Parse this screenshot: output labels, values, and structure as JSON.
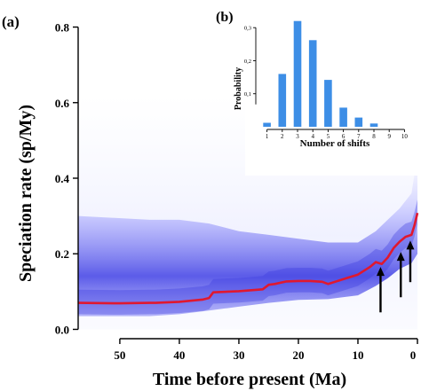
{
  "panel_labels": {
    "main": "(a)",
    "inset": "(b)"
  },
  "colors": {
    "rate_line": "#e0182f",
    "band_core": "#3a3ae0",
    "band_outer": "#b8b8ff",
    "inset_bars": "#3d8ee6",
    "axis": "#000000"
  },
  "chart_data": [
    {
      "type": "line",
      "title": "",
      "xlabel": "Time before present (Ma)",
      "ylabel": "Speciation rate (sp/My)",
      "xlim": [
        57,
        0
      ],
      "ylim": [
        -0.02,
        0.82
      ],
      "x_reversed": true,
      "xticks": [
        50,
        40,
        30,
        20,
        10,
        0
      ],
      "yticks": [
        0.0,
        0.2,
        0.4,
        0.6,
        0.8
      ],
      "xtick_labels": [
        "50",
        "40",
        "30",
        "20",
        "10",
        "0"
      ],
      "ytick_labels": [
        "0.0",
        "0.2",
        "0.4",
        "0.6",
        "0.8"
      ],
      "grid": false,
      "series": [
        {
          "x": [
            57,
            50,
            45,
            44,
            40,
            36,
            35,
            34.3,
            30,
            26,
            25,
            24,
            22,
            20,
            18,
            16,
            15,
            12,
            10,
            8,
            7,
            6,
            5,
            4,
            3,
            2,
            1,
            0.5,
            0
          ],
          "y": [
            0.07,
            0.069,
            0.07,
            0.07,
            0.073,
            0.079,
            0.083,
            0.098,
            0.101,
            0.106,
            0.118,
            0.12,
            0.127,
            0.128,
            0.128,
            0.126,
            0.12,
            0.135,
            0.145,
            0.165,
            0.178,
            0.173,
            0.19,
            0.215,
            0.232,
            0.245,
            0.25,
            0.275,
            0.308
          ]
        }
      ],
      "band": {
        "x": [
          57,
          45,
          40,
          35,
          30,
          25,
          20,
          15,
          10,
          7,
          5,
          3,
          1,
          0
        ],
        "lower": [
          0.035,
          0.035,
          0.04,
          0.05,
          0.06,
          0.07,
          0.078,
          0.08,
          0.09,
          0.115,
          0.135,
          0.16,
          0.175,
          0.2
        ],
        "upper": [
          0.3,
          0.29,
          0.29,
          0.28,
          0.26,
          0.25,
          0.24,
          0.23,
          0.23,
          0.26,
          0.29,
          0.32,
          0.36,
          0.46
        ]
      },
      "annotations": [
        {
          "type": "arrow",
          "x": 6.2,
          "y_tail": 0.045,
          "y_head": 0.165
        },
        {
          "type": "arrow",
          "x": 2.8,
          "y_tail": 0.085,
          "y_head": 0.205
        },
        {
          "type": "arrow",
          "x": 1.2,
          "y_tail": 0.125,
          "y_head": 0.235
        }
      ]
    },
    {
      "type": "bar",
      "title": "",
      "xlabel": "Number of shifts",
      "ylabel": "Probability",
      "categories": [
        "1",
        "2",
        "3",
        "4",
        "5",
        "6",
        "7",
        "8",
        "9",
        "10"
      ],
      "values": [
        0.012,
        0.16,
        0.32,
        0.262,
        0.142,
        0.058,
        0.028,
        0.01,
        0.0,
        0.0
      ],
      "ylim": [
        0,
        0.33
      ],
      "yticks": [
        0.1,
        0.2,
        0.3
      ],
      "ytick_labels": [
        "0,1",
        "0,2",
        "0,3"
      ],
      "grid": false
    }
  ]
}
